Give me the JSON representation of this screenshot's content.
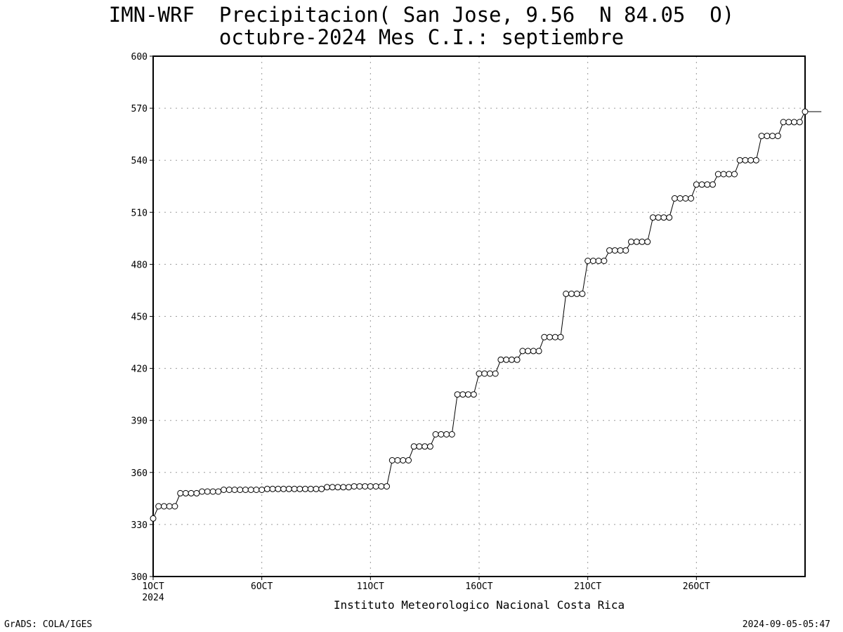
{
  "chart_data": {
    "type": "line",
    "title": "IMN-WRF  Precipitacion( San Jose, 9.56  N 84.05  O)",
    "subtitle": "octubre-2024 Mes C.I.: septiembre",
    "xlabel": "Instituto Meteorologico Nacional Costa Rica",
    "ylabel": "",
    "ylim": [
      300,
      600
    ],
    "yticks": [
      300,
      330,
      360,
      390,
      420,
      450,
      480,
      510,
      540,
      570,
      600
    ],
    "xlim": [
      1,
      31
    ],
    "xticks": [
      {
        "day": 1,
        "label": "1OCT",
        "sublabel": "2024"
      },
      {
        "day": 6,
        "label": "6OCT",
        "sublabel": ""
      },
      {
        "day": 11,
        "label": "11OCT",
        "sublabel": ""
      },
      {
        "day": 16,
        "label": "16OCT",
        "sublabel": ""
      },
      {
        "day": 21,
        "label": "21OCT",
        "sublabel": ""
      },
      {
        "day": 26,
        "label": "26OCT",
        "sublabel": ""
      }
    ],
    "grid": true,
    "marker": "open-circle",
    "series": [
      {
        "name": "",
        "interval_days": 0.25,
        "start_day": 1,
        "values": [
          333.5,
          340.5,
          340.5,
          340.5,
          340.5,
          348,
          348,
          348,
          348,
          349,
          349,
          349,
          349,
          350,
          350,
          350,
          350,
          350,
          350,
          350,
          350,
          350.5,
          350.5,
          350.5,
          350.5,
          350.5,
          350.5,
          350.5,
          350.5,
          350.5,
          350.5,
          350.5,
          351.5,
          351.5,
          351.5,
          351.5,
          351.5,
          352,
          352,
          352,
          352,
          352,
          352,
          352,
          367,
          367,
          367,
          367,
          375,
          375,
          375,
          375,
          382,
          382,
          382,
          382,
          405,
          405,
          405,
          405,
          417,
          417,
          417,
          417,
          425,
          425,
          425,
          425,
          430,
          430,
          430,
          430,
          438,
          438,
          438,
          438,
          463,
          463,
          463,
          463,
          482,
          482,
          482,
          482,
          488,
          488,
          488,
          488,
          493,
          493,
          493,
          493,
          507,
          507,
          507,
          507,
          518,
          518,
          518,
          518,
          526,
          526,
          526,
          526,
          532,
          532,
          532,
          532,
          540,
          540,
          540,
          540,
          554,
          554,
          554,
          554,
          562,
          562,
          562,
          562,
          568,
          568,
          568,
          568
        ]
      }
    ]
  },
  "footer": {
    "left": "GrADS: COLA/IGES",
    "right": "2024-09-05-05:47"
  },
  "colors": {
    "background": "#ffffff",
    "line": "#000000",
    "grid": "#9a9a9a"
  }
}
